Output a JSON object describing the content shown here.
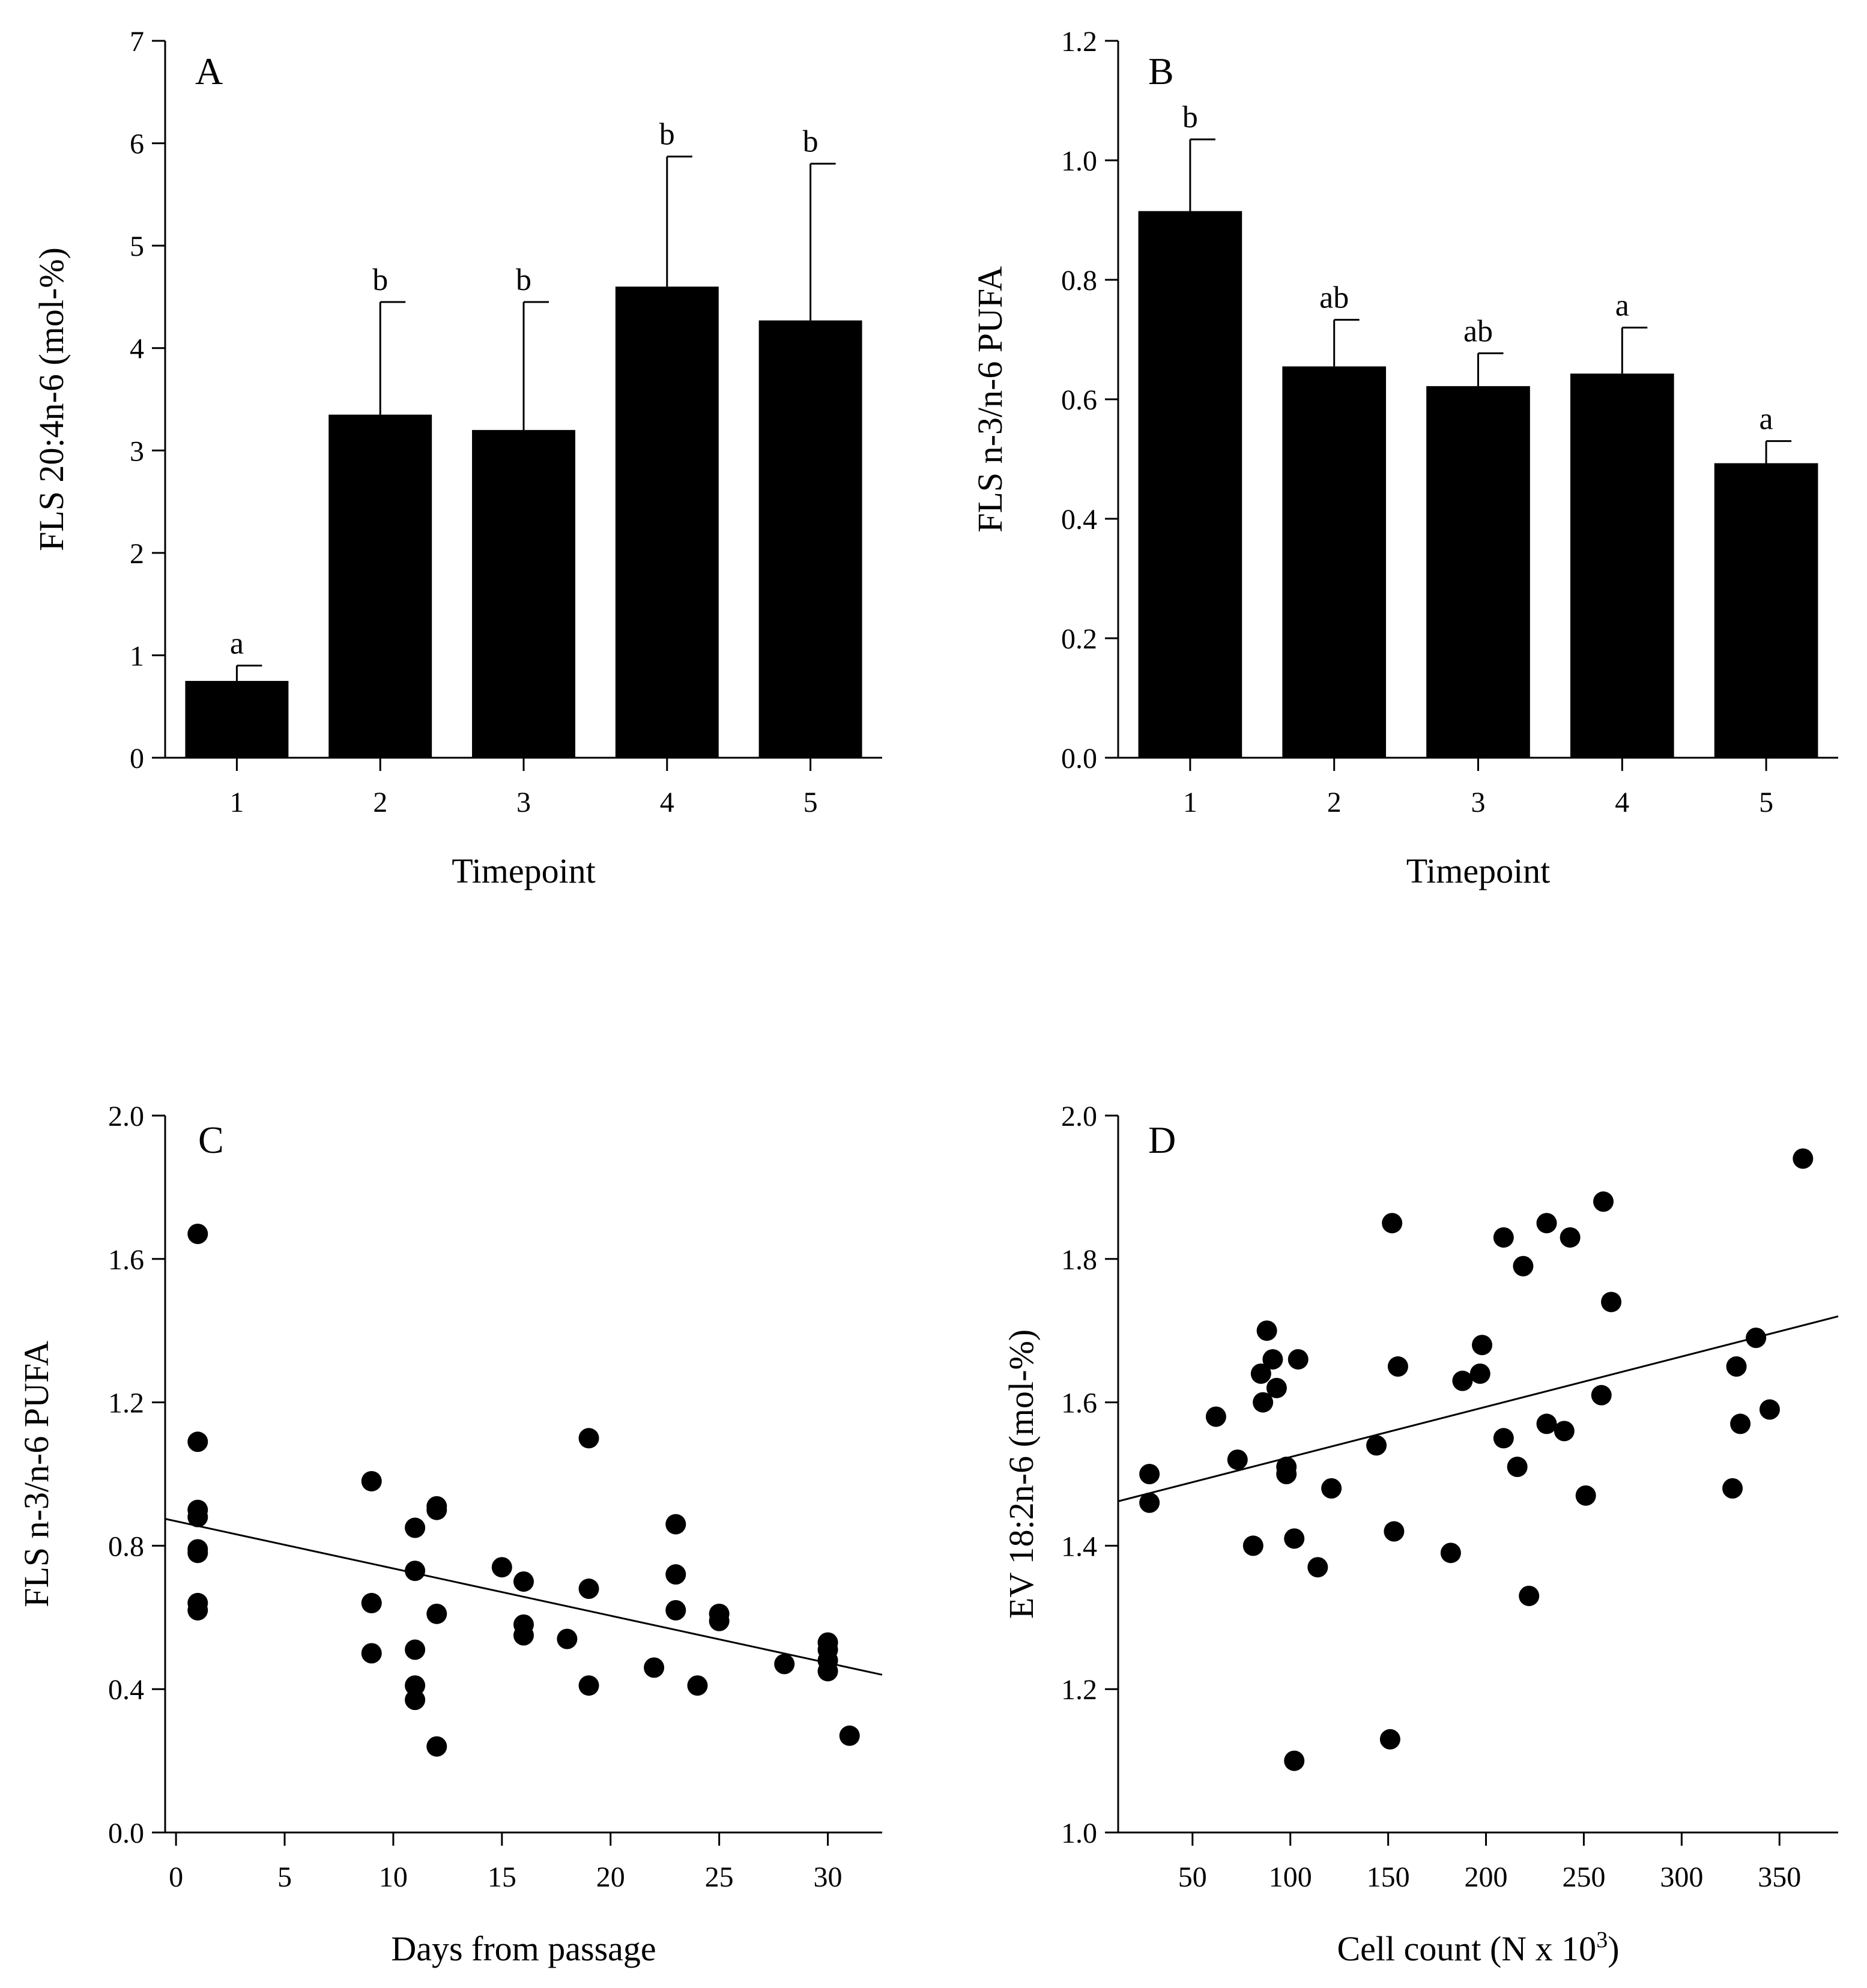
{
  "chart_data": [
    {
      "panel": "A",
      "type": "bar",
      "xlabel": "Timepoint",
      "ylabel": "FLS 20:4n-6 (mol-%)",
      "categories": [
        "1",
        "2",
        "3",
        "4",
        "5"
      ],
      "values": [
        0.75,
        3.35,
        3.2,
        4.6,
        4.27
      ],
      "errors": [
        0.15,
        1.1,
        1.25,
        1.27,
        1.53
      ],
      "significance": [
        "a",
        "b",
        "b",
        "b",
        "b"
      ],
      "ylim": [
        0,
        7
      ],
      "yticks": [
        "0",
        "1",
        "2",
        "3",
        "4",
        "5",
        "6",
        "7"
      ]
    },
    {
      "panel": "B",
      "type": "bar",
      "xlabel": "Timepoint",
      "ylabel": "FLS n-3/n-6 PUFA",
      "categories": [
        "1",
        "2",
        "3",
        "4",
        "5"
      ],
      "values": [
        0.915,
        0.655,
        0.622,
        0.643,
        0.493
      ],
      "errors": [
        0.12,
        0.078,
        0.055,
        0.077,
        0.037
      ],
      "significance": [
        "b",
        "ab",
        "ab",
        "a",
        "a"
      ],
      "ylim": [
        0,
        1.2
      ],
      "yticks": [
        "0.0",
        "0.2",
        "0.4",
        "0.6",
        "0.8",
        "1.0",
        "1.2"
      ]
    },
    {
      "panel": "C",
      "type": "scatter",
      "xlabel": "Days from passage",
      "ylabel": "FLS n-3/n-6 PUFA",
      "xlim": [
        -0.5,
        32.5
      ],
      "ylim": [
        0,
        2.0
      ],
      "xticks": [
        "0",
        "5",
        "10",
        "15",
        "20",
        "25",
        "30"
      ],
      "yticks": [
        "0.0",
        "0.4",
        "0.8",
        "1.2",
        "1.6",
        "2.0"
      ],
      "points": [
        [
          1,
          1.67
        ],
        [
          1,
          1.09
        ],
        [
          1,
          0.9
        ],
        [
          1,
          0.88
        ],
        [
          1,
          0.79
        ],
        [
          1,
          0.78
        ],
        [
          1,
          0.64
        ],
        [
          1,
          0.62
        ],
        [
          9,
          0.98
        ],
        [
          9,
          0.64
        ],
        [
          9,
          0.5
        ],
        [
          11,
          0.85
        ],
        [
          11,
          0.73
        ],
        [
          11,
          0.51
        ],
        [
          11,
          0.41
        ],
        [
          11,
          0.37
        ],
        [
          12,
          0.91
        ],
        [
          12,
          0.9
        ],
        [
          12,
          0.61
        ],
        [
          12,
          0.24
        ],
        [
          15,
          0.74
        ],
        [
          16,
          0.7
        ],
        [
          16,
          0.58
        ],
        [
          16,
          0.55
        ],
        [
          18,
          0.54
        ],
        [
          19,
          1.1
        ],
        [
          19,
          0.68
        ],
        [
          19,
          0.41
        ],
        [
          22,
          0.46
        ],
        [
          23,
          0.86
        ],
        [
          23,
          0.72
        ],
        [
          23,
          0.62
        ],
        [
          24,
          0.41
        ],
        [
          25,
          0.61
        ],
        [
          25,
          0.59
        ],
        [
          28,
          0.47
        ],
        [
          30,
          0.53
        ],
        [
          30,
          0.51
        ],
        [
          30,
          0.48
        ],
        [
          30,
          0.45
        ],
        [
          31,
          0.27
        ]
      ],
      "trendline": {
        "x": [
          -0.5,
          32.5
        ],
        "y": [
          0.875,
          0.44
        ]
      }
    },
    {
      "panel": "D",
      "type": "scatter",
      "xlabel": "Cell count (N x 10",
      "xlabel_sup": "3",
      "xlabel_end": ")",
      "ylabel": "EV 18:2n-6 (mol-%)",
      "xlim": [
        12,
        380
      ],
      "ylim": [
        1.0,
        2.0
      ],
      "xticks": [
        "50",
        "100",
        "150",
        "200",
        "250",
        "300",
        "350"
      ],
      "yticks": [
        "1.0",
        "1.2",
        "1.4",
        "1.6",
        "1.8",
        "2.0"
      ],
      "points": [
        [
          28,
          1.5
        ],
        [
          28,
          1.46
        ],
        [
          62,
          1.58
        ],
        [
          73,
          1.52
        ],
        [
          81,
          1.4
        ],
        [
          85,
          1.64
        ],
        [
          86,
          1.6
        ],
        [
          88,
          1.7
        ],
        [
          91,
          1.66
        ],
        [
          93,
          1.62
        ],
        [
          98,
          1.51
        ],
        [
          98,
          1.5
        ],
        [
          102,
          1.41
        ],
        [
          102,
          1.1
        ],
        [
          104,
          1.66
        ],
        [
          114,
          1.37
        ],
        [
          121,
          1.48
        ],
        [
          144,
          1.54
        ],
        [
          151,
          1.13
        ],
        [
          152,
          1.85
        ],
        [
          153,
          1.42
        ],
        [
          155,
          1.65
        ],
        [
          182,
          1.39
        ],
        [
          188,
          1.63
        ],
        [
          197,
          1.64
        ],
        [
          198,
          1.68
        ],
        [
          209,
          1.83
        ],
        [
          209,
          1.55
        ],
        [
          216,
          1.51
        ],
        [
          219,
          1.79
        ],
        [
          222,
          1.33
        ],
        [
          231,
          1.85
        ],
        [
          231,
          1.57
        ],
        [
          240,
          1.56
        ],
        [
          243,
          1.83
        ],
        [
          251,
          1.47
        ],
        [
          259,
          1.61
        ],
        [
          260,
          1.88
        ],
        [
          264,
          1.74
        ],
        [
          326,
          1.48
        ],
        [
          328,
          1.65
        ],
        [
          330,
          1.57
        ],
        [
          338,
          1.69
        ],
        [
          345,
          1.59
        ],
        [
          362,
          1.94
        ]
      ],
      "trendline": {
        "x": [
          12,
          380
        ],
        "y": [
          1.462,
          1.72
        ]
      }
    }
  ]
}
